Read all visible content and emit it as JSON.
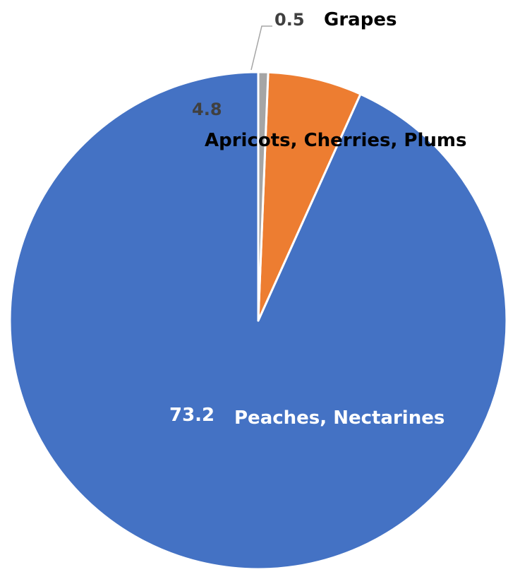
{
  "chart_data": {
    "type": "pie",
    "title": "",
    "slices": [
      {
        "label": "Peaches, Nectarines",
        "value": 73.2,
        "value_label": "73.2",
        "color": "#4472c4",
        "value_color": "#ffffff",
        "label_color": "#ffffff"
      },
      {
        "label": "Apricots, Cherries, Plums",
        "value": 4.8,
        "value_label": "4.8",
        "color": "#ed7d31",
        "value_color": "#404040",
        "label_color": "#000000"
      },
      {
        "label": "Grapes",
        "value": 0.5,
        "value_label": "0.5",
        "color": "#a5a5a5",
        "value_color": "#404040",
        "label_color": "#000000"
      }
    ],
    "legend": "none",
    "start_angle_deg": 0,
    "direction": "counterclockwise"
  }
}
